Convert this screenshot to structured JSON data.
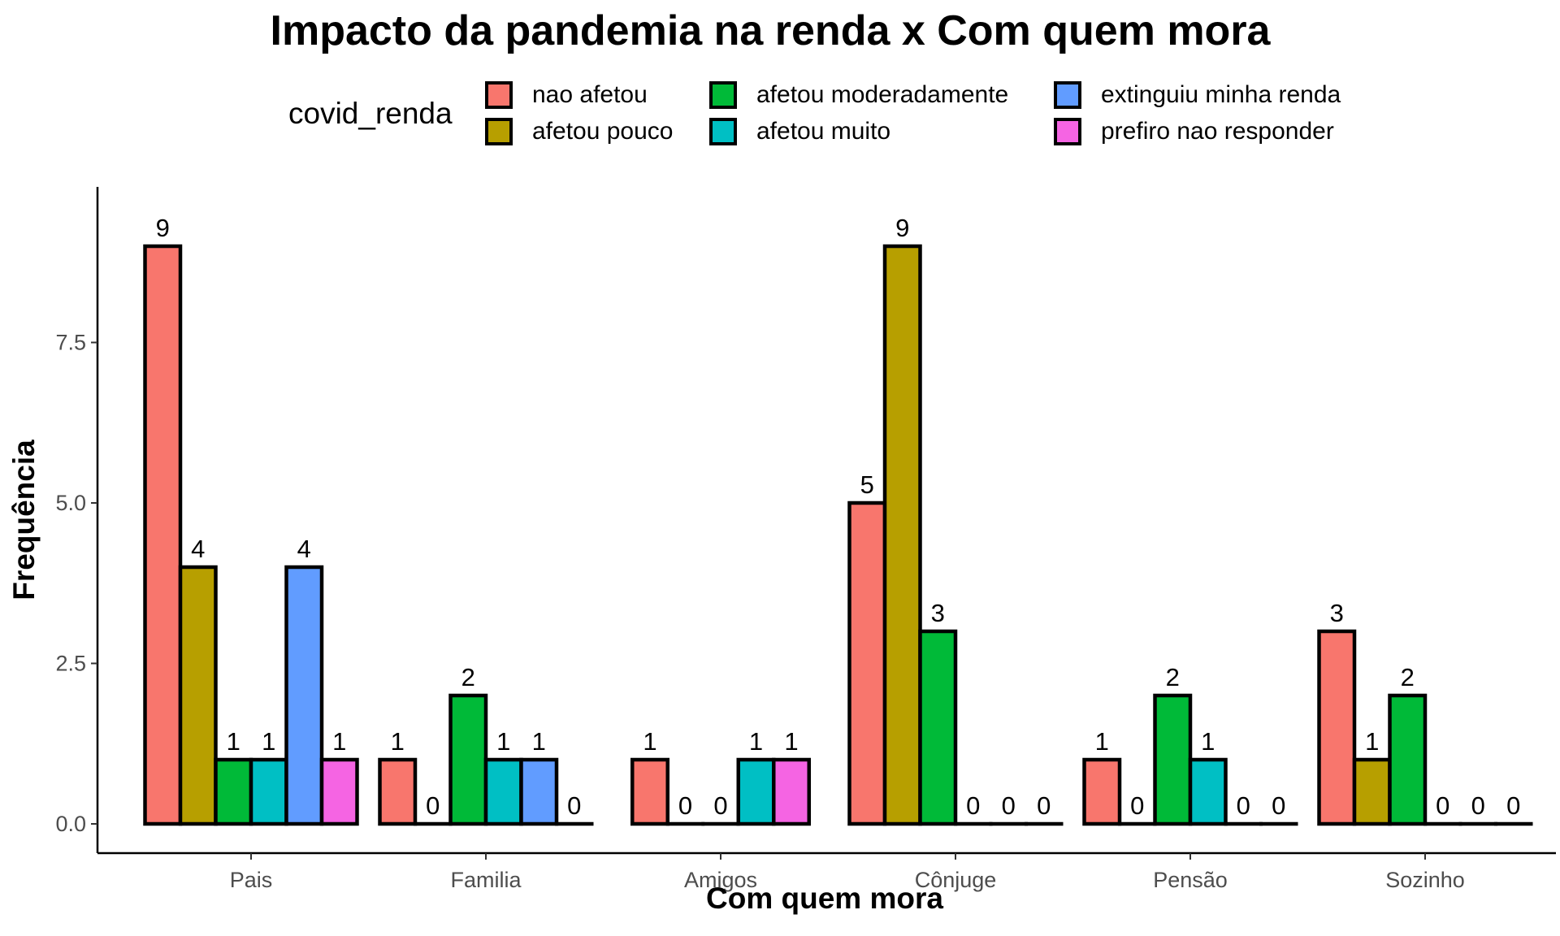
{
  "chart_data": {
    "type": "bar",
    "title": "Impacto da pandemia na renda x Com quem mora",
    "xlabel": "Com quem mora",
    "ylabel": "Frequência",
    "ylim": [
      0,
      9
    ],
    "yticks": [
      "0.0",
      "2.5",
      "5.0",
      "7.5"
    ],
    "ytick_values": [
      0,
      2.5,
      5,
      7.5
    ],
    "categories": [
      "Pais",
      "Familia",
      "Amigos",
      "Cônjuge",
      "Pensão",
      "Sozinho"
    ],
    "legend_title": "covid_renda",
    "legend_position": "top",
    "grid": false,
    "series": [
      {
        "name": "nao afetou",
        "color": "#F8766D",
        "values": [
          9,
          1,
          1,
          5,
          1,
          3
        ]
      },
      {
        "name": "afetou pouco",
        "color": "#B79F00",
        "values": [
          4,
          0,
          0,
          9,
          0,
          1
        ]
      },
      {
        "name": "afetou moderadamente",
        "color": "#00BA38",
        "values": [
          1,
          2,
          0,
          3,
          2,
          2
        ]
      },
      {
        "name": "afetou muito",
        "color": "#00BFC4",
        "values": [
          1,
          1,
          1,
          0,
          1,
          0
        ]
      },
      {
        "name": "extinguiu minha renda",
        "color": "#619CFF",
        "values": [
          4,
          1,
          null,
          0,
          0,
          0
        ]
      },
      {
        "name": "prefiro nao responder",
        "color": "#F564E3",
        "values": [
          1,
          0,
          1,
          0,
          0,
          0
        ]
      }
    ]
  }
}
